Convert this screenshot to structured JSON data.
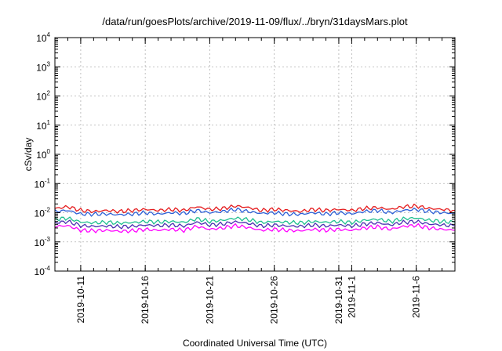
{
  "chart_data": {
    "type": "line",
    "title": "/data/run/goesPlots/archive/2019-11-09/flux/../bryn/31daysMars.plot",
    "xlabel": "Coordinated Universal Time (UTC)",
    "ylabel": "cSv/day",
    "yscale": "log",
    "ylim": [
      0.0001,
      10000
    ],
    "y_tick_exponents": [
      -4,
      -3,
      -2,
      -1,
      0,
      1,
      2,
      3,
      4
    ],
    "y_tick_base": "10",
    "xlim": [
      "2019-10-09",
      "2019-11-09"
    ],
    "x_ticks": [
      {
        "date": "2019-10-11",
        "label": "2019-10-11"
      },
      {
        "date": "2019-10-16",
        "label": "2019-10-16"
      },
      {
        "date": "2019-10-21",
        "label": "2019-10-21"
      },
      {
        "date": "2019-10-26",
        "label": "2019-10-26"
      },
      {
        "date": "2019-10-31",
        "label": "2019-10-31"
      },
      {
        "date": "2019-11-01",
        "label": "2019-11-1"
      },
      {
        "date": "2019-11-06",
        "label": "2019-11-6"
      }
    ],
    "grid": true,
    "x": [
      "2019-10-09",
      "2019-10-10",
      "2019-10-11",
      "2019-10-12",
      "2019-10-13",
      "2019-10-14",
      "2019-10-15",
      "2019-10-16",
      "2019-10-17",
      "2019-10-18",
      "2019-10-19",
      "2019-10-20",
      "2019-10-21",
      "2019-10-22",
      "2019-10-23",
      "2019-10-24",
      "2019-10-25",
      "2019-10-26",
      "2019-10-27",
      "2019-10-28",
      "2019-10-29",
      "2019-10-30",
      "2019-10-31",
      "2019-11-01",
      "2019-11-02",
      "2019-11-03",
      "2019-11-04",
      "2019-11-05",
      "2019-11-06",
      "2019-11-07",
      "2019-11-08",
      "2019-11-09"
    ],
    "series": [
      {
        "color": "#e41a1c",
        "values": [
          0.014,
          0.016,
          0.012,
          0.011,
          0.012,
          0.011,
          0.012,
          0.013,
          0.012,
          0.013,
          0.012,
          0.016,
          0.013,
          0.014,
          0.017,
          0.015,
          0.012,
          0.013,
          0.012,
          0.011,
          0.013,
          0.012,
          0.013,
          0.012,
          0.014,
          0.015,
          0.013,
          0.016,
          0.017,
          0.014,
          0.013,
          0.012
        ]
      },
      {
        "color": "#2c5fd6",
        "values": [
          0.011,
          0.012,
          0.009,
          0.009,
          0.009,
          0.0085,
          0.009,
          0.01,
          0.009,
          0.01,
          0.0095,
          0.012,
          0.01,
          0.011,
          0.013,
          0.011,
          0.0095,
          0.01,
          0.009,
          0.0088,
          0.01,
          0.009,
          0.01,
          0.0092,
          0.011,
          0.012,
          0.01,
          0.012,
          0.013,
          0.011,
          0.01,
          0.0095
        ]
      },
      {
        "color": "#1fbf8f",
        "values": [
          0.006,
          0.0065,
          0.0048,
          0.0045,
          0.0047,
          0.0044,
          0.0046,
          0.005,
          0.0048,
          0.005,
          0.0047,
          0.0062,
          0.005,
          0.0055,
          0.0065,
          0.0058,
          0.0046,
          0.005,
          0.0047,
          0.0045,
          0.005,
          0.0047,
          0.005,
          0.0046,
          0.0055,
          0.006,
          0.005,
          0.0062,
          0.0066,
          0.0055,
          0.005,
          0.0047
        ]
      },
      {
        "color": "#4a2fb0",
        "values": [
          0.0045,
          0.005,
          0.0036,
          0.0034,
          0.0035,
          0.0033,
          0.0034,
          0.0038,
          0.0036,
          0.0038,
          0.0035,
          0.0047,
          0.0038,
          0.0041,
          0.0049,
          0.0043,
          0.0035,
          0.0038,
          0.0035,
          0.0034,
          0.0038,
          0.0035,
          0.0038,
          0.0035,
          0.0041,
          0.0045,
          0.0038,
          0.0047,
          0.005,
          0.0041,
          0.0038,
          0.0035
        ]
      },
      {
        "color": "#ff00ff",
        "values": [
          0.0034,
          0.0036,
          0.0025,
          0.0024,
          0.0025,
          0.0023,
          0.0024,
          0.0027,
          0.0025,
          0.0027,
          0.0025,
          0.0034,
          0.0027,
          0.003,
          0.0036,
          0.0031,
          0.0025,
          0.0027,
          0.0025,
          0.0024,
          0.0027,
          0.0025,
          0.0027,
          0.0025,
          0.003,
          0.0033,
          0.0027,
          0.0034,
          0.0037,
          0.003,
          0.0027,
          0.0025
        ]
      }
    ]
  }
}
